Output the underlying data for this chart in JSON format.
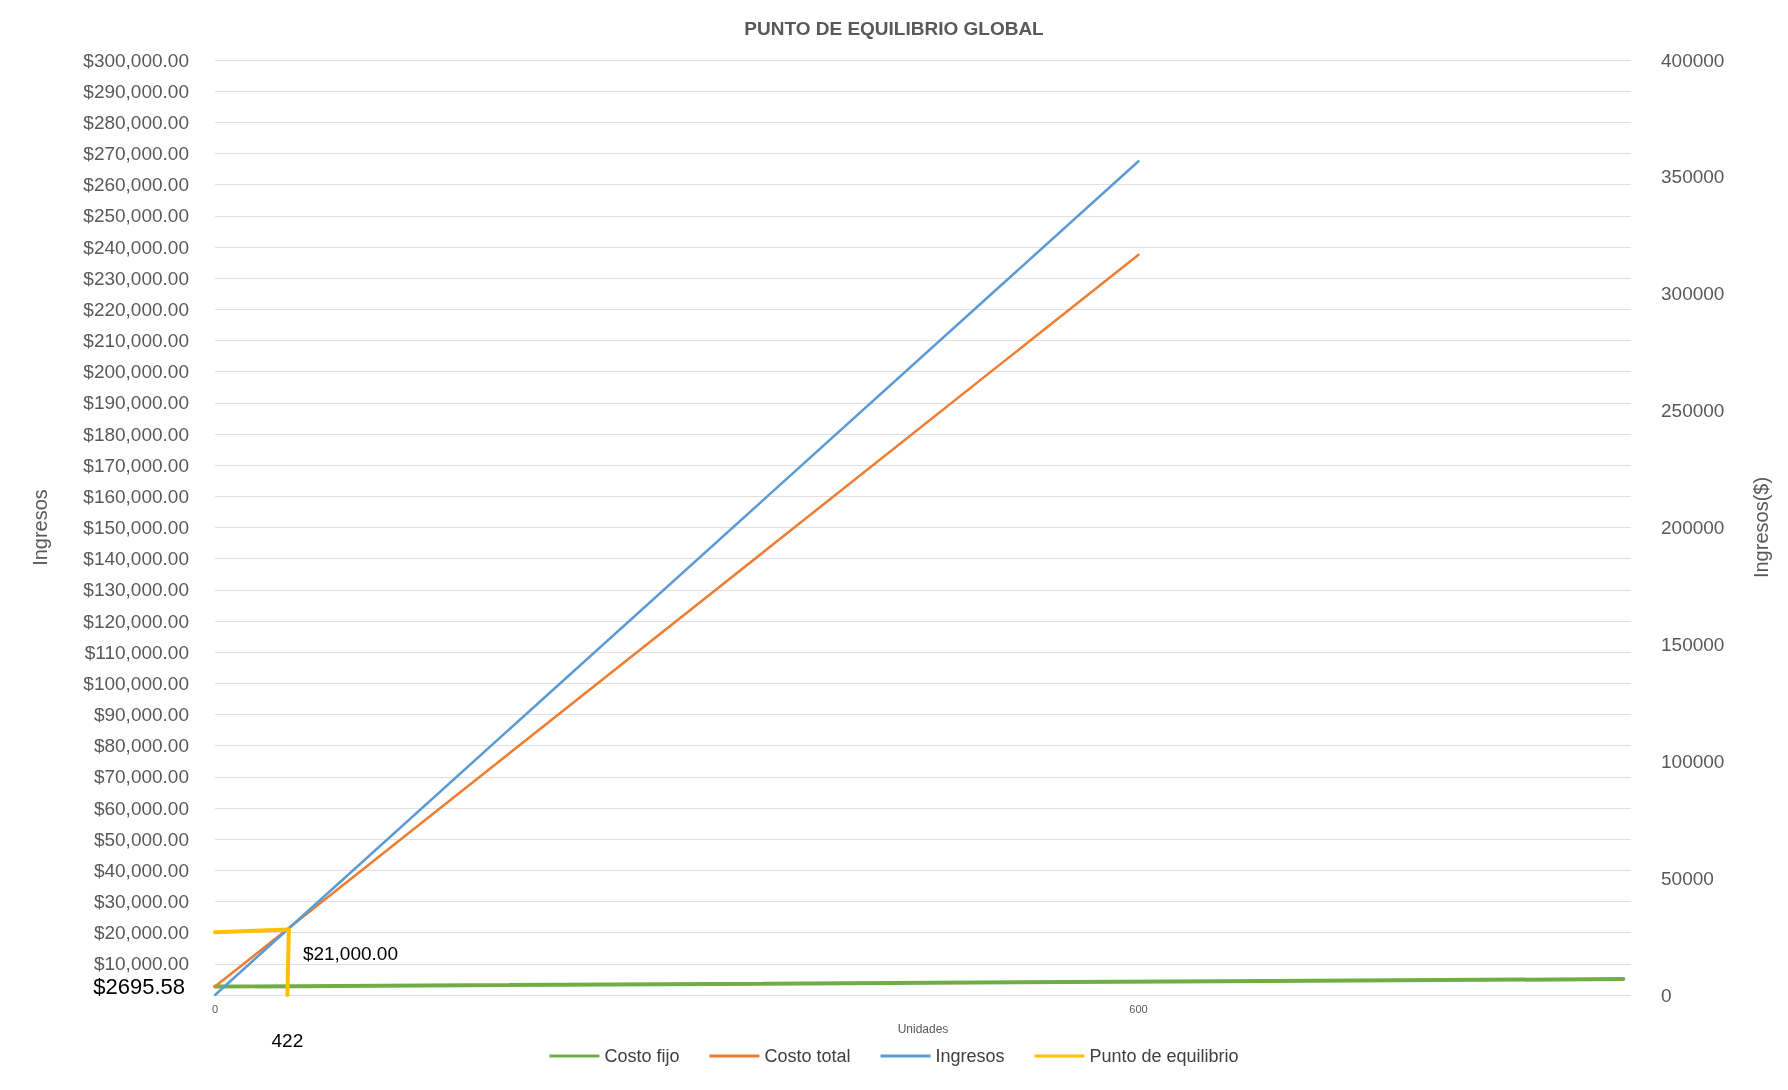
{
  "chart_data": {
    "type": "line",
    "title": "PUNTO DE EQUILIBRIO GLOBAL",
    "xlabel": "Unidades",
    "ylabel": "Ingresos",
    "y2label": "Ingresos($)",
    "xlim": [
      0,
      920
    ],
    "xticks": [
      0,
      600
    ],
    "ylim": [
      0,
      300000
    ],
    "yticks": [
      {
        "value": 0,
        "label": null
      },
      {
        "value": 10000,
        "label": "$10,000.00"
      },
      {
        "value": 20000,
        "label": "$20,000.00"
      },
      {
        "value": 30000,
        "label": "$30,000.00"
      },
      {
        "value": 40000,
        "label": "$40,000.00"
      },
      {
        "value": 50000,
        "label": "$50,000.00"
      },
      {
        "value": 60000,
        "label": "$60,000.00"
      },
      {
        "value": 70000,
        "label": "$70,000.00"
      },
      {
        "value": 80000,
        "label": "$80,000.00"
      },
      {
        "value": 90000,
        "label": "$90,000.00"
      },
      {
        "value": 100000,
        "label": "$100,000.00"
      },
      {
        "value": 110000,
        "label": "$110,000.00"
      },
      {
        "value": 120000,
        "label": "$120,000.00"
      },
      {
        "value": 130000,
        "label": "$130,000.00"
      },
      {
        "value": 140000,
        "label": "$140,000.00"
      },
      {
        "value": 150000,
        "label": "$150,000.00"
      },
      {
        "value": 160000,
        "label": "$160,000.00"
      },
      {
        "value": 170000,
        "label": "$170,000.00"
      },
      {
        "value": 180000,
        "label": "$180,000.00"
      },
      {
        "value": 190000,
        "label": "$190,000.00"
      },
      {
        "value": 200000,
        "label": "$200,000.00"
      },
      {
        "value": 210000,
        "label": "$210,000.00"
      },
      {
        "value": 220000,
        "label": "$220,000.00"
      },
      {
        "value": 230000,
        "label": "$230,000.00"
      },
      {
        "value": 240000,
        "label": "$240,000.00"
      },
      {
        "value": 250000,
        "label": "$250,000.00"
      },
      {
        "value": 260000,
        "label": "$260,000.00"
      },
      {
        "value": 270000,
        "label": "$270,000.00"
      },
      {
        "value": 280000,
        "label": "$280,000.00"
      },
      {
        "value": 290000,
        "label": "$290,000.00"
      },
      {
        "value": 300000,
        "label": "$300,000.00"
      }
    ],
    "y2lim": [
      0,
      400000
    ],
    "y2ticks": [
      0,
      50000,
      100000,
      150000,
      200000,
      250000,
      300000,
      350000,
      400000
    ],
    "series": [
      {
        "name": "Costo fijo",
        "color": "#70ad47",
        "x": [
          0,
          915
        ],
        "values": [
          2700,
          5100
        ]
      },
      {
        "name": "Costo total",
        "color": "#ed7d31",
        "x": [
          0,
          600
        ],
        "values": [
          2700,
          237500
        ]
      },
      {
        "name": "Ingresos",
        "color": "#5b9bd5",
        "x": [
          0,
          600
        ],
        "values": [
          0,
          267500
        ]
      },
      {
        "name": "Punto de equilibrio",
        "color": "#ffc000",
        "x": [
          0,
          48,
          47
        ],
        "values": [
          20100,
          21000,
          0
        ]
      }
    ],
    "annotations": [
      "$21,000.00",
      "422",
      "$2695.58"
    ],
    "grid": "y",
    "legend": "bottom",
    "marker": "none",
    "line_style": "solid"
  }
}
